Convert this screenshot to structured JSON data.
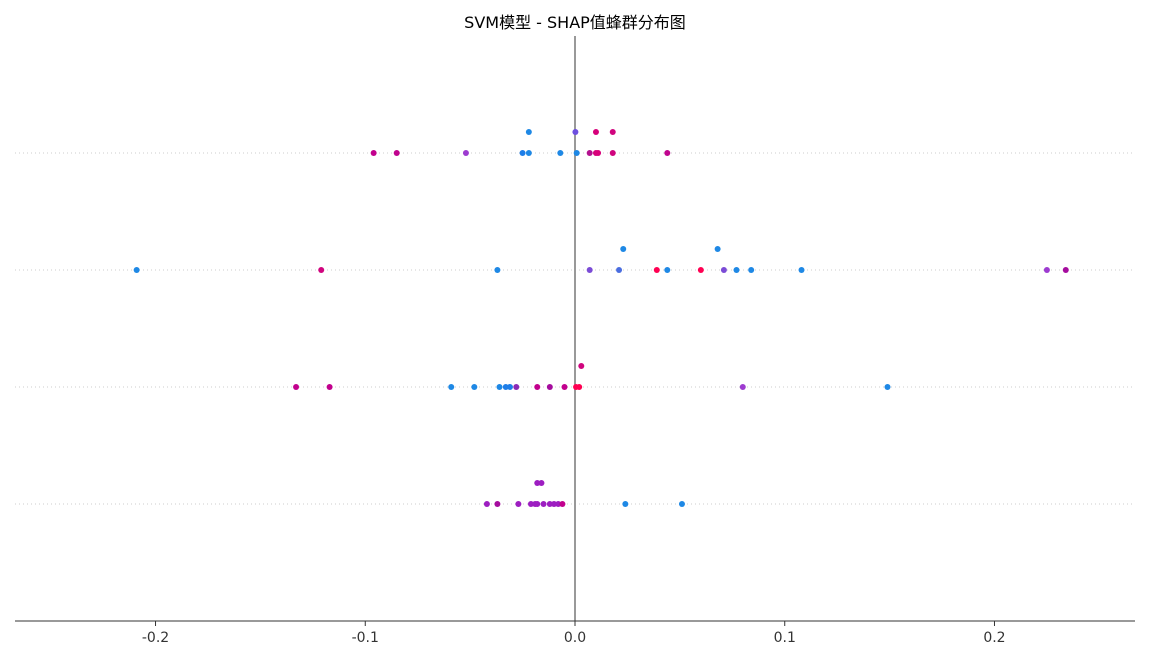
{
  "chart_data": {
    "type": "scatter",
    "title": "SVM模型 - SHAP值蜂群分布图",
    "xlabel": "",
    "ylabel": "",
    "xlim": [
      -0.267,
      0.267
    ],
    "xticks": [
      -0.2,
      -0.1,
      0.0,
      0.1,
      0.2
    ],
    "xtick_labels": [
      "-0.2",
      "-0.1",
      "0.0",
      "0.1",
      "0.2"
    ],
    "grid": "dotted horizontal row lines",
    "zero_line": true,
    "colors": {
      "low": "#008bfb",
      "mid": "#9d1ec1",
      "high": "#ff0052",
      "zero_line": "#999999",
      "axis": "#333333"
    },
    "rows": [
      {
        "points": [
          {
            "x": -0.022,
            "y": 1,
            "c": "#1e88e5"
          },
          {
            "x": 0.0002,
            "y": 1,
            "c": "#6e4fe0"
          },
          {
            "x": 0.01,
            "y": 1,
            "c": "#d6007a"
          },
          {
            "x": 0.018,
            "y": 1,
            "c": "#d0047e"
          },
          {
            "x": -0.096,
            "y": 0,
            "c": "#c2008d"
          },
          {
            "x": -0.085,
            "y": 0,
            "c": "#c0048e"
          },
          {
            "x": -0.052,
            "y": 0,
            "c": "#9d3bd0"
          },
          {
            "x": -0.025,
            "y": 0,
            "c": "#1e7ee8"
          },
          {
            "x": -0.022,
            "y": 0,
            "c": "#1e88e5"
          },
          {
            "x": -0.007,
            "y": 0,
            "c": "#1e88e5"
          },
          {
            "x": 0.0008,
            "y": 0,
            "c": "#1e88e5"
          },
          {
            "x": 0.007,
            "y": 0,
            "c": "#b3108f"
          },
          {
            "x": 0.01,
            "y": 0,
            "c": "#d6007a"
          },
          {
            "x": 0.011,
            "y": 0,
            "c": "#d9007a"
          },
          {
            "x": 0.018,
            "y": 0,
            "c": "#d0047e"
          },
          {
            "x": 0.044,
            "y": 0,
            "c": "#c0048e"
          }
        ]
      },
      {
        "points": [
          {
            "x": 0.023,
            "y": 1,
            "c": "#1e88e5"
          },
          {
            "x": 0.068,
            "y": 1,
            "c": "#1e88e5"
          },
          {
            "x": -0.209,
            "y": 0,
            "c": "#1e88e5"
          },
          {
            "x": -0.121,
            "y": 0,
            "c": "#d0047e"
          },
          {
            "x": -0.037,
            "y": 0,
            "c": "#1e88e5"
          },
          {
            "x": 0.007,
            "y": 0,
            "c": "#7b4bd6"
          },
          {
            "x": 0.021,
            "y": 0,
            "c": "#4a6de0"
          },
          {
            "x": 0.039,
            "y": 0,
            "c": "#ff0052"
          },
          {
            "x": 0.044,
            "y": 0,
            "c": "#1e88e5"
          },
          {
            "x": 0.06,
            "y": 0,
            "c": "#ff0052"
          },
          {
            "x": 0.071,
            "y": 0,
            "c": "#7b4bd6"
          },
          {
            "x": 0.077,
            "y": 0,
            "c": "#1e88e5"
          },
          {
            "x": 0.084,
            "y": 0,
            "c": "#1e88e5"
          },
          {
            "x": 0.108,
            "y": 0,
            "c": "#1e88e5"
          },
          {
            "x": 0.225,
            "y": 0,
            "c": "#9d3bd0"
          },
          {
            "x": 0.234,
            "y": 0,
            "c": "#a50c9e"
          }
        ]
      },
      {
        "points": [
          {
            "x": 0.003,
            "y": 1,
            "c": "#d0047e"
          },
          {
            "x": -0.133,
            "y": 0,
            "c": "#c2008d"
          },
          {
            "x": -0.117,
            "y": 0,
            "c": "#c2008d"
          },
          {
            "x": -0.059,
            "y": 0,
            "c": "#1e88e5"
          },
          {
            "x": -0.048,
            "y": 0,
            "c": "#1e88e5"
          },
          {
            "x": -0.036,
            "y": 0,
            "c": "#1e88e5"
          },
          {
            "x": -0.033,
            "y": 0,
            "c": "#1e7ee8"
          },
          {
            "x": -0.031,
            "y": 0,
            "c": "#1e7ee8"
          },
          {
            "x": -0.028,
            "y": 0,
            "c": "#8a2ab5"
          },
          {
            "x": -0.018,
            "y": 0,
            "c": "#c2008d"
          },
          {
            "x": -0.012,
            "y": 0,
            "c": "#a50c9e"
          },
          {
            "x": -0.005,
            "y": 0,
            "c": "#c2008d"
          },
          {
            "x": 0.0005,
            "y": 0,
            "c": "#ff0052"
          },
          {
            "x": 0.002,
            "y": 0,
            "c": "#ff0052"
          },
          {
            "x": 0.08,
            "y": 0,
            "c": "#9d3bd0"
          },
          {
            "x": 0.149,
            "y": 0,
            "c": "#1e88e5"
          }
        ]
      },
      {
        "points": [
          {
            "x": -0.018,
            "y": 1,
            "c": "#9d1ec1"
          },
          {
            "x": -0.016,
            "y": 1,
            "c": "#9d1ec1"
          },
          {
            "x": -0.042,
            "y": 0,
            "c": "#9d1ec1"
          },
          {
            "x": -0.037,
            "y": 0,
            "c": "#a50c9e"
          },
          {
            "x": -0.027,
            "y": 0,
            "c": "#9d1ec1"
          },
          {
            "x": -0.021,
            "y": 0,
            "c": "#9d1ec1"
          },
          {
            "x": -0.019,
            "y": 0,
            "c": "#9d1ec1"
          },
          {
            "x": -0.018,
            "y": 0,
            "c": "#9d1ec1"
          },
          {
            "x": -0.015,
            "y": 0,
            "c": "#9d1ec1"
          },
          {
            "x": -0.012,
            "y": 0,
            "c": "#9d1ec1"
          },
          {
            "x": -0.01,
            "y": 0,
            "c": "#9d1ec1"
          },
          {
            "x": -0.008,
            "y": 0,
            "c": "#9d1ec1"
          },
          {
            "x": -0.006,
            "y": 0,
            "c": "#c2008d"
          },
          {
            "x": 0.024,
            "y": 0,
            "c": "#1e88e5"
          },
          {
            "x": 0.051,
            "y": 0,
            "c": "#1e88e5"
          }
        ]
      }
    ]
  }
}
